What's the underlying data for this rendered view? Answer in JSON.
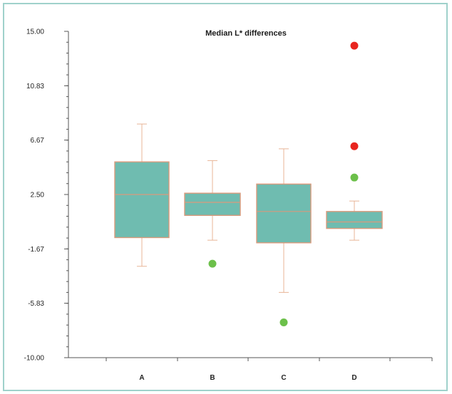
{
  "chart_data": {
    "type": "box",
    "title": "Median L* differences",
    "xlabel": "",
    "ylabel": "",
    "ylim": [
      -10.0,
      15.0
    ],
    "y_ticks": [
      "15.00",
      "10.83",
      "6.67",
      "2.50",
      "-1.67",
      "-5.83",
      "-10.00"
    ],
    "y_tick_values": [
      15.0,
      10.83,
      6.67,
      2.5,
      -1.67,
      -5.83,
      -10.0
    ],
    "categories": [
      "A",
      "B",
      "C",
      "D"
    ],
    "boxes": [
      {
        "category": "A",
        "whisker_low": -3.0,
        "q1": -0.8,
        "median": 2.5,
        "q3": 5.0,
        "whisker_high": 7.9,
        "outliers": []
      },
      {
        "category": "B",
        "whisker_low": -1.0,
        "q1": 0.9,
        "median": 1.9,
        "q3": 2.6,
        "whisker_high": 5.1,
        "outliers": [
          {
            "value": -2.8,
            "color": "green"
          }
        ]
      },
      {
        "category": "C",
        "whisker_low": -5.0,
        "q1": -1.2,
        "median": 1.2,
        "q3": 3.3,
        "whisker_high": 6.0,
        "outliers": [
          {
            "value": -7.3,
            "color": "green"
          }
        ]
      },
      {
        "category": "D",
        "whisker_low": -1.0,
        "q1": -0.1,
        "median": 0.4,
        "q3": 1.2,
        "whisker_high": 2.0,
        "outliers": [
          {
            "value": 13.9,
            "color": "red"
          },
          {
            "value": 6.2,
            "color": "red"
          },
          {
            "value": 3.8,
            "color": "green"
          }
        ]
      }
    ],
    "grid": false,
    "legend": "none"
  },
  "colors": {
    "box_fill": "#6fbcb0",
    "box_stroke": "#d99a7c",
    "median_line": "#d99a7c",
    "whisker": "#e8b597",
    "outlier_green": "#6cc04a",
    "outlier_red": "#e8251f",
    "frame_border": "#9fd1cb"
  }
}
